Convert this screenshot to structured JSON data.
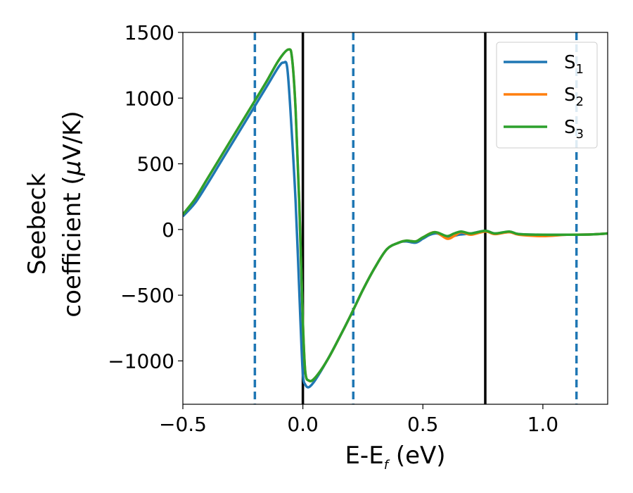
{
  "chart_data": {
    "type": "line",
    "xlabel": {
      "main": "E-E",
      "sub": "f",
      "suffix": " (eV)"
    },
    "ylabel": {
      "line1": "Seebeck",
      "line2_prefix": "coefficient  (",
      "mu": "μ",
      "line2_suffix": "V/K)"
    },
    "xlim": [
      -0.5,
      1.27
    ],
    "ylim": [
      -1330,
      1500
    ],
    "xticks": [
      -0.5,
      0.0,
      0.5,
      1.0
    ],
    "xtick_labels": [
      "−0.5",
      "0.0",
      "0.5",
      "1.0"
    ],
    "yticks": [
      -1000,
      -500,
      0,
      500,
      1000,
      1500
    ],
    "ytick_labels": [
      "−1000",
      "−500",
      "0",
      "500",
      "1000",
      "1500"
    ],
    "legend_position": "upper-right",
    "vlines_solid": [
      0.0,
      0.76
    ],
    "vlines_dashed": [
      -0.2,
      0.21,
      1.14
    ],
    "series": [
      {
        "name": "S",
        "sub": "1",
        "color": "#1f77b4",
        "x": [
          -0.5,
          -0.45,
          -0.4,
          -0.35,
          -0.3,
          -0.25,
          -0.2,
          -0.15,
          -0.1,
          -0.08,
          -0.065,
          -0.05,
          -0.03,
          -0.01,
          0.0,
          0.01,
          0.025,
          0.05,
          0.1,
          0.15,
          0.2,
          0.25,
          0.3,
          0.35,
          0.4,
          0.43,
          0.47,
          0.5,
          0.53,
          0.56,
          0.6,
          0.65,
          0.7,
          0.76,
          0.8,
          0.86,
          0.9,
          1.0,
          1.1,
          1.2,
          1.27
        ],
        "y": [
          100,
          200,
          340,
          490,
          640,
          790,
          940,
          1090,
          1240,
          1270,
          1230,
          850,
          200,
          -700,
          -1100,
          -1180,
          -1200,
          -1150,
          -1000,
          -830,
          -650,
          -460,
          -290,
          -150,
          -100,
          -90,
          -100,
          -70,
          -40,
          -30,
          -60,
          -40,
          -30,
          -10,
          -30,
          -20,
          -35,
          -40,
          -40,
          -38,
          -30
        ]
      },
      {
        "name": "S",
        "sub": "2",
        "color": "#ff7f0e",
        "x": [
          -0.5,
          -0.45,
          -0.4,
          -0.35,
          -0.3,
          -0.25,
          -0.2,
          -0.15,
          -0.1,
          -0.06,
          -0.045,
          -0.03,
          -0.015,
          0.0,
          0.01,
          0.025,
          0.05,
          0.1,
          0.15,
          0.2,
          0.25,
          0.3,
          0.35,
          0.4,
          0.43,
          0.47,
          0.5,
          0.55,
          0.6,
          0.63,
          0.66,
          0.7,
          0.76,
          0.8,
          0.86,
          0.9,
          1.0,
          1.1,
          1.2,
          1.27
        ],
        "y": [
          115,
          230,
          380,
          530,
          680,
          830,
          980,
          1130,
          1290,
          1370,
          1300,
          900,
          200,
          -700,
          -1080,
          -1150,
          -1130,
          -1000,
          -830,
          -650,
          -460,
          -290,
          -150,
          -100,
          -85,
          -90,
          -60,
          -20,
          -70,
          -50,
          -20,
          -40,
          -15,
          -35,
          -20,
          -40,
          -50,
          -40,
          -38,
          -30
        ]
      },
      {
        "name": "S",
        "sub": "3",
        "color": "#2ca02c",
        "x": [
          -0.5,
          -0.45,
          -0.4,
          -0.35,
          -0.3,
          -0.25,
          -0.2,
          -0.15,
          -0.1,
          -0.06,
          -0.045,
          -0.03,
          -0.015,
          0.0,
          0.01,
          0.025,
          0.05,
          0.1,
          0.15,
          0.2,
          0.25,
          0.3,
          0.35,
          0.4,
          0.43,
          0.47,
          0.5,
          0.55,
          0.6,
          0.63,
          0.66,
          0.7,
          0.76,
          0.8,
          0.86,
          0.9,
          1.0,
          1.1,
          1.2,
          1.27
        ],
        "y": [
          115,
          230,
          380,
          530,
          680,
          830,
          980,
          1130,
          1290,
          1370,
          1300,
          900,
          200,
          -700,
          -1080,
          -1150,
          -1130,
          -1000,
          -830,
          -650,
          -460,
          -290,
          -150,
          -100,
          -85,
          -90,
          -60,
          -20,
          -50,
          -30,
          -15,
          -30,
          -10,
          -30,
          -15,
          -35,
          -40,
          -40,
          -38,
          -30
        ]
      }
    ]
  }
}
